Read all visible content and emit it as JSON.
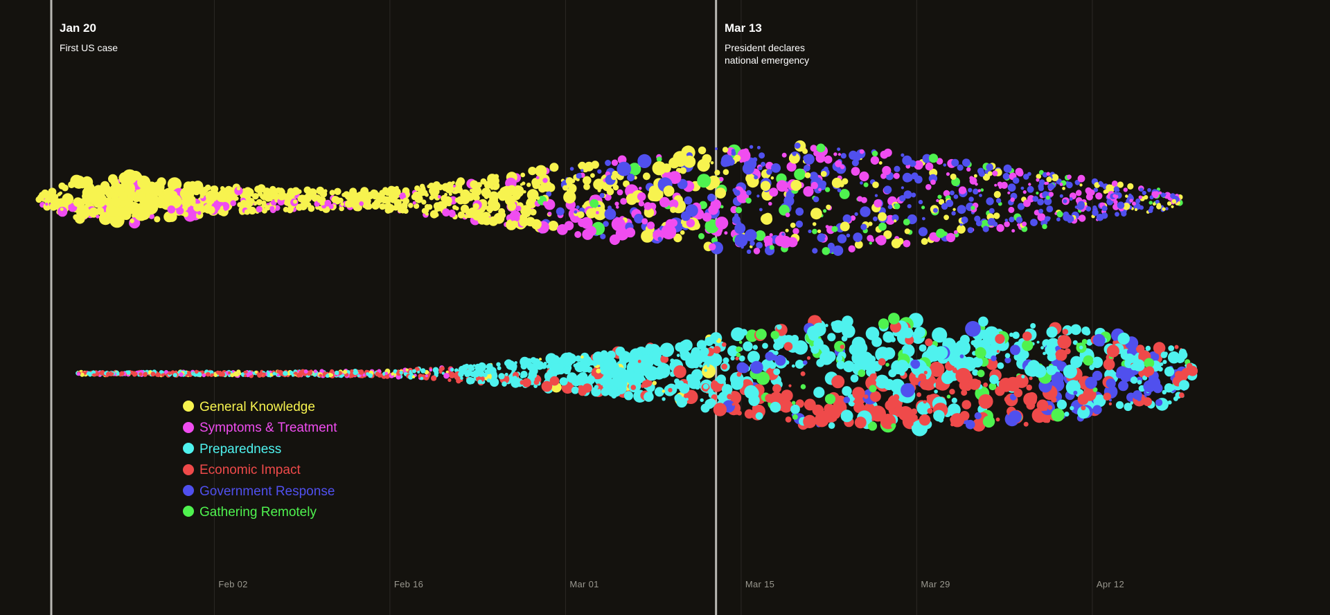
{
  "chart_data": {
    "type": "scatter",
    "subtype": "beeswarm-timeline",
    "x_axis": {
      "type": "date",
      "range": [
        "2020-01-18",
        "2020-04-20"
      ],
      "ticks": [
        {
          "date": "2020-02-02",
          "label": "Feb 02"
        },
        {
          "date": "2020-02-16",
          "label": "Feb 16"
        },
        {
          "date": "2020-03-01",
          "label": "Mar 01"
        },
        {
          "date": "2020-03-15",
          "label": "Mar 15"
        },
        {
          "date": "2020-03-29",
          "label": "Mar 29"
        },
        {
          "date": "2020-04-12",
          "label": "Apr 12"
        }
      ],
      "grid": true
    },
    "events": [
      {
        "date": "2020-01-20",
        "label": "Jan 20",
        "text": "First US case"
      },
      {
        "date": "2020-03-13",
        "label": "Mar 13",
        "text": "President declares national emergency"
      }
    ],
    "legend": {
      "placement": "bottom-left",
      "items": [
        {
          "name": "General Knowledge",
          "color": "#f7f34f",
          "group": "top"
        },
        {
          "name": "Symptoms & Treatment",
          "color": "#f04df0",
          "group": "top"
        },
        {
          "name": "Preparedness",
          "color": "#4ff2ee",
          "group": "bottom"
        },
        {
          "name": "Economic Impact",
          "color": "#ef4a4a",
          "group": "bottom"
        },
        {
          "name": "Government Response",
          "color": "#5050ee",
          "group": "both"
        },
        {
          "name": "Gathering Remotely",
          "color": "#4ff24f",
          "group": "both"
        }
      ]
    }
  }
}
